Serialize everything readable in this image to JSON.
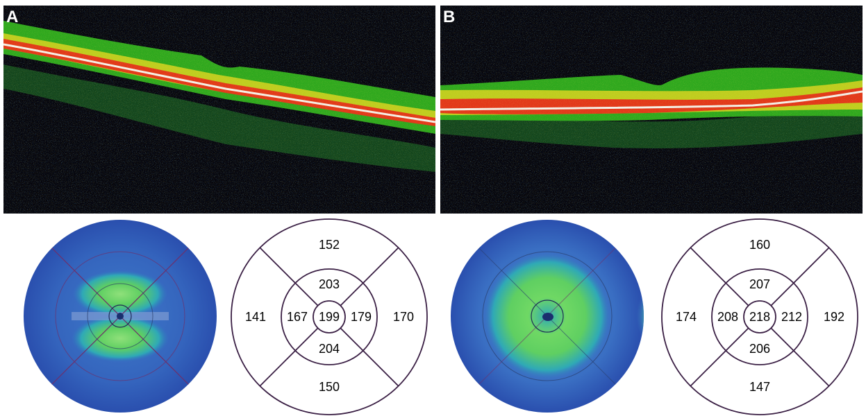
{
  "panels": [
    {
      "label": "A",
      "etdrs": {
        "center": "199",
        "inner_superior": "203",
        "inner_inferior": "204",
        "inner_temporal": "167",
        "inner_nasal": "179",
        "outer_superior": "152",
        "outer_inferior": "150",
        "outer_temporal": "141",
        "outer_nasal": "170"
      }
    },
    {
      "label": "B",
      "etdrs": {
        "center": "218",
        "inner_superior": "207",
        "inner_inferior": "206",
        "inner_temporal": "208",
        "inner_nasal": "212",
        "outer_superior": "160",
        "outer_inferior": "147",
        "outer_temporal": "174",
        "outer_nasal": "192"
      }
    }
  ],
  "colors": {
    "oct_background": "#05050d",
    "oct_green": "#2fa81e",
    "oct_yellow": "#d8d420",
    "oct_red": "#e2381a",
    "oct_white": "#f4f0e8",
    "map_blue": "#2a55b8",
    "map_teal": "#2fa9b6",
    "map_green": "#5fcf62",
    "map_yellow": "#f2ea0a",
    "grid_line": "#3a1f44"
  }
}
